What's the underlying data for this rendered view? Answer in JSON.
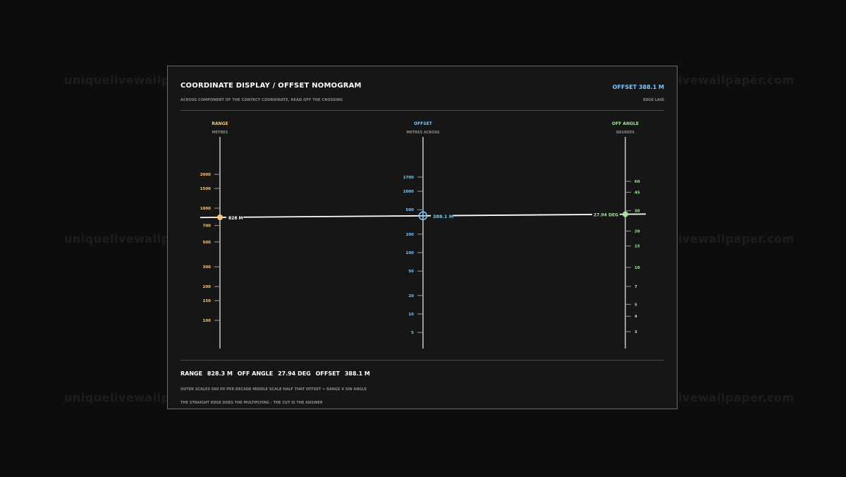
{
  "watermark": "uniquelivewallpaper.com",
  "header": {
    "title": "COORDINATE DISPLAY / OFFSET NOMOGRAM",
    "subtitle": "ACROSS COMPONENT OF THE CONTACT COORDINATE, READ OFF THE CROSSING",
    "readout": "OFFSET 388.1 M",
    "edge_label": "EDGE LAID"
  },
  "scales": [
    {
      "id": "range",
      "name": "RANGE",
      "unit": "METRES",
      "color": "#f6c77f",
      "ticks": [
        "2000",
        "1500",
        "1000",
        "700",
        "500",
        "300",
        "200",
        "150",
        "100"
      ],
      "value": 828.3,
      "value_label": "828 M"
    },
    {
      "id": "offset",
      "name": "OFFSET",
      "unit": "METRES ACROSS",
      "color": "#7fc4f4",
      "ticks": [
        "1700",
        "1000",
        "500",
        "200",
        "100",
        "50",
        "20",
        "10",
        "5"
      ],
      "value": 388.1,
      "value_label": "388.1 M"
    },
    {
      "id": "angle",
      "name": "OFF ANGLE",
      "unit": "DEGREES",
      "color": "#a6e3a1",
      "ticks": [
        "60",
        "45",
        "30",
        "20",
        "15",
        "10",
        "7",
        "5",
        "4",
        "3"
      ],
      "value": 27.94,
      "value_label": "27.94 DEG"
    }
  ],
  "summary": {
    "range_label": "RANGE",
    "range_value": "828.3 M",
    "angle_label": "OFF ANGLE",
    "angle_value": "27.94 DEG",
    "offset_label": "OFFSET",
    "offset_value": "388.1 M"
  },
  "notes": {
    "line1": "OUTER SCALES 560 PX PER DECADE   MIDDLE SCALE HALF THAT   OFFSET = RANGE X SIN ANGLE",
    "line2": "THE STRAIGHT EDGE DOES THE MULTIPLYING - THE CUT IS THE ANSWER"
  }
}
